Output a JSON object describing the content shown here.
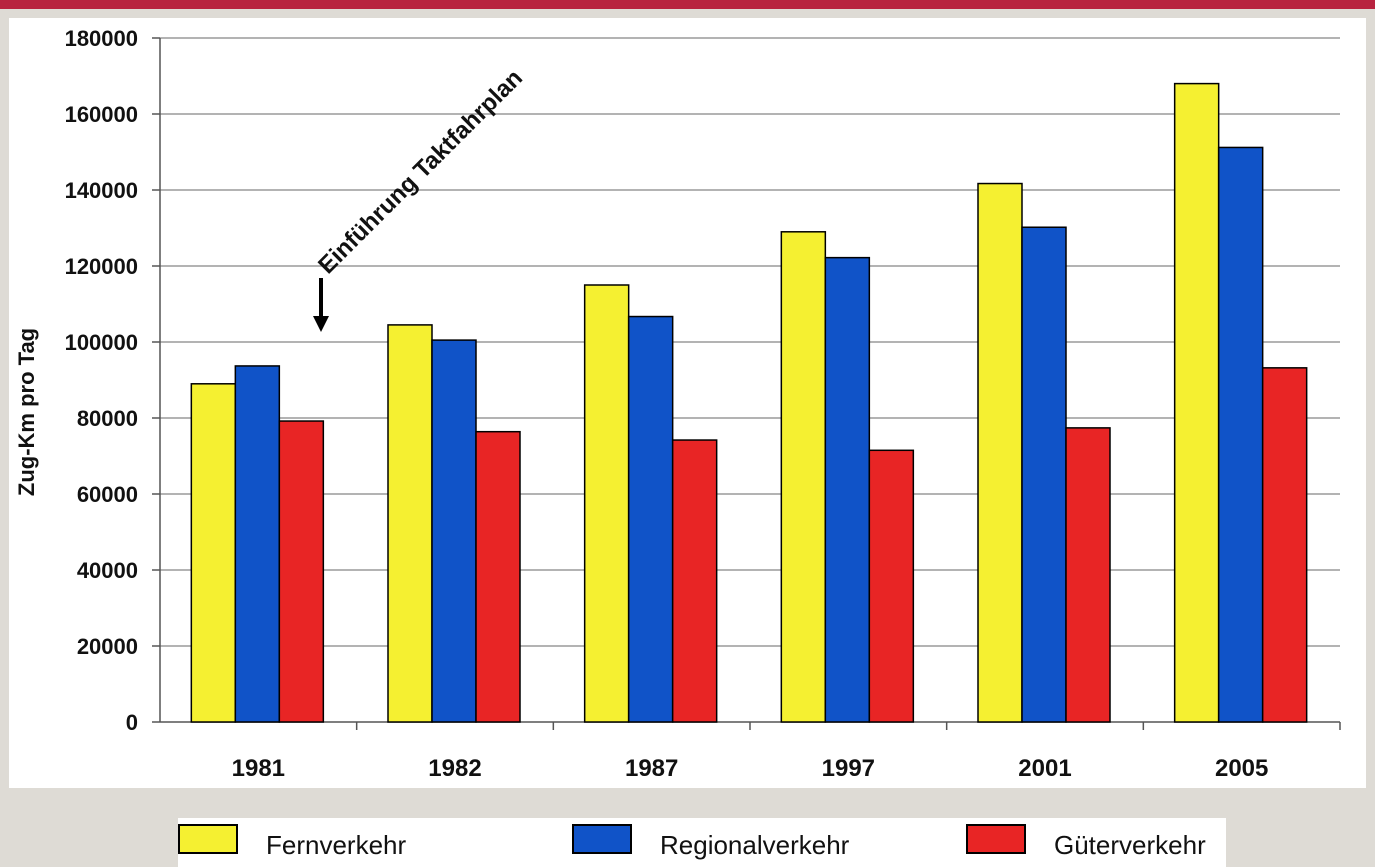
{
  "chart_data": {
    "type": "bar",
    "categories": [
      "1981",
      "1982",
      "1987",
      "1997",
      "2001",
      "2005"
    ],
    "series": [
      {
        "name": "Fernverkehr",
        "color": "#f5f031",
        "values": [
          89000,
          104500,
          115000,
          129000,
          141700,
          168000
        ]
      },
      {
        "name": "Regionalverkehr",
        "color": "#1053c8",
        "values": [
          93700,
          100500,
          106700,
          122200,
          130200,
          151200
        ]
      },
      {
        "name": "Güterverkehr",
        "color": "#e82525",
        "values": [
          79200,
          76400,
          74200,
          71500,
          77400,
          93200
        ]
      }
    ],
    "ylabel": "Zug-Km pro Tag",
    "xlabel": "",
    "ylim": [
      0,
      180000
    ],
    "yticks": [
      "0",
      "20000",
      "40000",
      "60000",
      "80000",
      "100000",
      "120000",
      "140000",
      "160000",
      "180000"
    ],
    "grid": true,
    "legend_position": "bottom",
    "annotation": {
      "text": "Einführung Taktfahrplan",
      "at_category": "1981",
      "arrow": "down"
    }
  }
}
